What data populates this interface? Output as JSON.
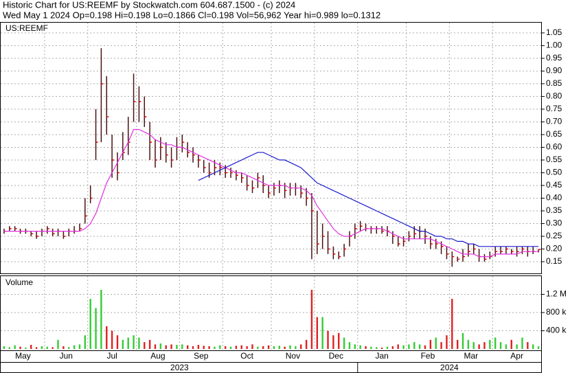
{
  "chart_data": [
    {
      "type": "hlc",
      "title": "Historic Chart for US:REEMF by Stockwatch.com 604.687.1500 - (c) 2024",
      "subtitle": "Wed May  1 2024   Op=0.198  Hi=0.198  Lo=0.1866  Cl=0.198  Vol=56,962  Year hi=0.989  lo=0.1312",
      "label": "US:REEMF",
      "categories": [
        "May",
        null,
        null,
        null,
        null,
        null,
        null,
        null,
        "Jun",
        null,
        null,
        null,
        null,
        null,
        null,
        null,
        "Jul",
        null,
        null,
        null,
        null,
        null,
        null,
        null,
        null,
        "Aug",
        null,
        null,
        null,
        null,
        null,
        null,
        null,
        "Sep",
        null,
        null,
        null,
        null,
        null,
        null,
        null,
        "Oct",
        null,
        null,
        null,
        null,
        null,
        null,
        null,
        null,
        "Nov",
        null,
        null,
        null,
        null,
        null,
        null,
        null,
        "Dec",
        null,
        null,
        null,
        null,
        null,
        null,
        null,
        "Jan",
        null,
        null,
        null,
        null,
        null,
        null,
        null,
        null,
        "Feb",
        null,
        null,
        null,
        null,
        null,
        null,
        null,
        "Mar",
        null,
        null,
        null,
        null,
        null,
        null,
        null,
        "Apr",
        null,
        null,
        null,
        null,
        null,
        null,
        null,
        null
      ],
      "x2_categories": [
        "2023",
        null,
        null,
        null,
        null,
        null,
        null,
        null,
        null,
        null,
        null,
        null,
        null,
        null,
        null,
        null,
        null,
        null,
        null,
        null,
        null,
        null,
        null,
        null,
        null,
        null,
        null,
        null,
        null,
        null,
        null,
        null,
        null,
        null,
        null,
        null,
        null,
        null,
        null,
        null,
        null,
        null,
        null,
        null,
        null,
        null,
        null,
        null,
        null,
        null,
        null,
        null,
        null,
        null,
        null,
        null,
        null,
        null,
        null,
        null,
        null,
        null,
        null,
        null,
        null,
        null,
        "2024",
        null,
        null,
        null,
        null,
        null,
        null,
        null,
        null,
        null,
        null,
        null,
        null,
        null,
        null,
        null,
        null,
        null,
        null,
        null,
        null,
        null,
        null,
        null,
        null,
        null,
        null,
        null,
        null,
        null,
        null,
        null,
        null,
        null
      ],
      "high": [
        0.28,
        0.29,
        0.29,
        0.28,
        0.28,
        0.27,
        0.27,
        0.28,
        0.29,
        0.28,
        0.28,
        0.27,
        0.28,
        0.29,
        0.3,
        0.4,
        0.45,
        0.75,
        0.99,
        0.88,
        0.65,
        0.58,
        0.66,
        0.72,
        0.89,
        0.84,
        0.8,
        0.7,
        0.63,
        0.64,
        0.62,
        0.6,
        0.64,
        0.65,
        0.62,
        0.6,
        0.57,
        0.55,
        0.54,
        0.55,
        0.54,
        0.53,
        0.52,
        0.51,
        0.5,
        0.49,
        0.47,
        0.5,
        0.49,
        0.45,
        0.46,
        0.47,
        0.46,
        0.46,
        0.46,
        0.45,
        0.44,
        0.42,
        0.35,
        0.3,
        0.27,
        0.21,
        0.19,
        0.22,
        0.27,
        0.3,
        0.31,
        0.3,
        0.29,
        0.29,
        0.29,
        0.29,
        0.27,
        0.25,
        0.25,
        0.27,
        0.29,
        0.29,
        0.28,
        0.25,
        0.24,
        0.23,
        0.21,
        0.19,
        0.17,
        0.2,
        0.22,
        0.22,
        0.2,
        0.18,
        0.19,
        0.21,
        0.21,
        0.21,
        0.2,
        0.21,
        0.21,
        0.21,
        0.21,
        0.198
      ],
      "low": [
        0.26,
        0.27,
        0.27,
        0.26,
        0.26,
        0.25,
        0.24,
        0.25,
        0.26,
        0.25,
        0.25,
        0.24,
        0.25,
        0.26,
        0.27,
        0.3,
        0.38,
        0.55,
        0.62,
        0.65,
        0.48,
        0.47,
        0.55,
        0.57,
        0.7,
        0.7,
        0.68,
        0.55,
        0.52,
        0.55,
        0.54,
        0.52,
        0.55,
        0.58,
        0.56,
        0.54,
        0.52,
        0.5,
        0.48,
        0.49,
        0.49,
        0.48,
        0.48,
        0.47,
        0.46,
        0.43,
        0.42,
        0.44,
        0.42,
        0.4,
        0.41,
        0.42,
        0.4,
        0.41,
        0.41,
        0.4,
        0.37,
        0.16,
        0.18,
        0.2,
        0.18,
        0.16,
        0.16,
        0.17,
        0.21,
        0.24,
        0.27,
        0.27,
        0.26,
        0.26,
        0.26,
        0.25,
        0.22,
        0.21,
        0.21,
        0.23,
        0.24,
        0.24,
        0.22,
        0.2,
        0.2,
        0.18,
        0.16,
        0.13,
        0.15,
        0.15,
        0.17,
        0.18,
        0.15,
        0.15,
        0.16,
        0.17,
        0.18,
        0.18,
        0.18,
        0.17,
        0.18,
        0.17,
        0.18,
        0.1866
      ],
      "close": [
        0.27,
        0.28,
        0.28,
        0.27,
        0.27,
        0.26,
        0.25,
        0.27,
        0.28,
        0.26,
        0.27,
        0.25,
        0.27,
        0.27,
        0.28,
        0.33,
        0.4,
        0.62,
        0.85,
        0.72,
        0.55,
        0.5,
        0.58,
        0.62,
        0.78,
        0.78,
        0.72,
        0.62,
        0.55,
        0.6,
        0.57,
        0.55,
        0.6,
        0.62,
        0.58,
        0.57,
        0.55,
        0.52,
        0.5,
        0.52,
        0.52,
        0.5,
        0.5,
        0.49,
        0.48,
        0.45,
        0.44,
        0.48,
        0.45,
        0.42,
        0.44,
        0.45,
        0.43,
        0.44,
        0.44,
        0.42,
        0.4,
        0.35,
        0.22,
        0.25,
        0.2,
        0.18,
        0.17,
        0.2,
        0.25,
        0.28,
        0.29,
        0.28,
        0.28,
        0.28,
        0.27,
        0.27,
        0.25,
        0.22,
        0.23,
        0.25,
        0.26,
        0.27,
        0.25,
        0.22,
        0.22,
        0.21,
        0.18,
        0.17,
        0.16,
        0.17,
        0.19,
        0.2,
        0.17,
        0.16,
        0.17,
        0.19,
        0.19,
        0.2,
        0.19,
        0.19,
        0.2,
        0.19,
        0.19,
        0.198
      ],
      "bar_color": "#4a1010",
      "close_color": "#dd0000",
      "series": [
        {
          "color": "#e030e0",
          "values": [
            0.27,
            0.27,
            0.27,
            0.27,
            0.27,
            0.27,
            0.27,
            0.27,
            0.27,
            0.27,
            0.27,
            0.27,
            0.27,
            0.27,
            0.27,
            0.28,
            0.3,
            0.34,
            0.4,
            0.46,
            0.5,
            0.54,
            0.58,
            0.62,
            0.67,
            0.67,
            0.66,
            0.65,
            0.63,
            0.62,
            0.61,
            0.61,
            0.6,
            0.6,
            0.59,
            0.58,
            0.57,
            0.56,
            0.55,
            0.54,
            0.53,
            0.52,
            0.51,
            0.5,
            0.5,
            0.49,
            0.48,
            0.47,
            0.46,
            0.45,
            0.45,
            0.45,
            0.45,
            0.44,
            0.44,
            0.44,
            0.43,
            0.41,
            0.37,
            0.34,
            0.31,
            0.28,
            0.26,
            0.25,
            0.25,
            0.26,
            0.27,
            0.28,
            0.28,
            0.28,
            0.28,
            0.27,
            0.26,
            0.25,
            0.24,
            0.24,
            0.24,
            0.24,
            0.24,
            0.24,
            0.23,
            0.22,
            0.21,
            0.2,
            0.19,
            0.18,
            0.18,
            0.18,
            0.17,
            0.17,
            0.17,
            0.18,
            0.18,
            0.18,
            0.18,
            0.18,
            0.19,
            0.19,
            0.19,
            0.19
          ]
        },
        {
          "color": "#1a1acc",
          "values": [
            null,
            null,
            null,
            null,
            null,
            null,
            null,
            null,
            null,
            null,
            null,
            null,
            null,
            null,
            null,
            null,
            null,
            null,
            null,
            null,
            null,
            null,
            null,
            null,
            null,
            null,
            null,
            null,
            null,
            null,
            null,
            null,
            null,
            null,
            null,
            null,
            0.47,
            0.48,
            0.49,
            0.5,
            0.51,
            0.52,
            0.53,
            0.54,
            0.55,
            0.56,
            0.57,
            0.58,
            0.58,
            0.57,
            0.56,
            0.55,
            0.55,
            0.54,
            0.53,
            0.52,
            0.5,
            0.48,
            0.46,
            0.45,
            0.44,
            0.43,
            0.42,
            0.41,
            0.4,
            0.39,
            0.38,
            0.37,
            0.36,
            0.35,
            0.34,
            0.33,
            0.32,
            0.31,
            0.3,
            0.29,
            0.28,
            0.27,
            0.27,
            0.26,
            0.25,
            0.25,
            0.24,
            0.24,
            0.23,
            0.23,
            0.22,
            0.22,
            0.21,
            0.21,
            0.21,
            0.21,
            0.21,
            0.21,
            0.21,
            0.21,
            0.21,
            0.21,
            0.21,
            0.21
          ]
        }
      ],
      "ylim": [
        0.104,
        1.093
      ],
      "yticks": [
        0.15,
        {
          "value": 0.2,
          "label": "0.20"
        },
        0.25,
        {
          "value": 0.3,
          "label": "0.30"
        },
        0.35,
        {
          "value": 0.4,
          "label": "0.40"
        },
        0.45,
        {
          "value": 0.5,
          "label": "0.50"
        },
        0.55,
        {
          "value": 0.6,
          "label": "0.60"
        },
        0.65,
        {
          "value": 0.7,
          "label": "0.70"
        },
        0.75,
        {
          "value": 0.8,
          "label": "0.80"
        },
        0.85,
        {
          "value": 0.9,
          "label": "0.90"
        },
        0.95,
        {
          "value": 1,
          "label": "1.00"
        },
        1.05
      ],
      "grid": true
    },
    {
      "type": "bar",
      "title": "Volume",
      "values": [
        60000,
        40000,
        80000,
        50000,
        30000,
        90000,
        40000,
        60000,
        50000,
        40000,
        200000,
        60000,
        40000,
        80000,
        100000,
        300000,
        1100000,
        900000,
        1300000,
        500000,
        400000,
        300000,
        200000,
        250000,
        300000,
        250000,
        150000,
        200000,
        100000,
        120000,
        80000,
        100000,
        90000,
        100000,
        80000,
        60000,
        90000,
        70000,
        60000,
        50000,
        80000,
        60000,
        50000,
        70000,
        80000,
        60000,
        100000,
        50000,
        60000,
        80000,
        60000,
        70000,
        50000,
        80000,
        60000,
        100000,
        200000,
        1300000,
        700000,
        700000,
        400000,
        300000,
        350000,
        250000,
        150000,
        100000,
        80000,
        60000,
        50000,
        40000,
        30000,
        50000,
        60000,
        100000,
        80000,
        100000,
        150000,
        100000,
        80000,
        200000,
        250000,
        150000,
        300000,
        1100000,
        200000,
        350000,
        200000,
        150000,
        100000,
        150000,
        200000,
        250000,
        150000,
        100000,
        200000,
        100000,
        250000,
        150000,
        100000,
        56962
      ],
      "up_color": "#33cc33",
      "down_color": "#e02020",
      "ylim": [
        -30000,
        1600000
      ],
      "yticks": [
        {
          "value": 400000,
          "label": "400 k"
        },
        {
          "value": 800000,
          "label": "800 k"
        },
        {
          "value": 1200000,
          "label": "1.2 M"
        }
      ],
      "grid": true
    }
  ]
}
